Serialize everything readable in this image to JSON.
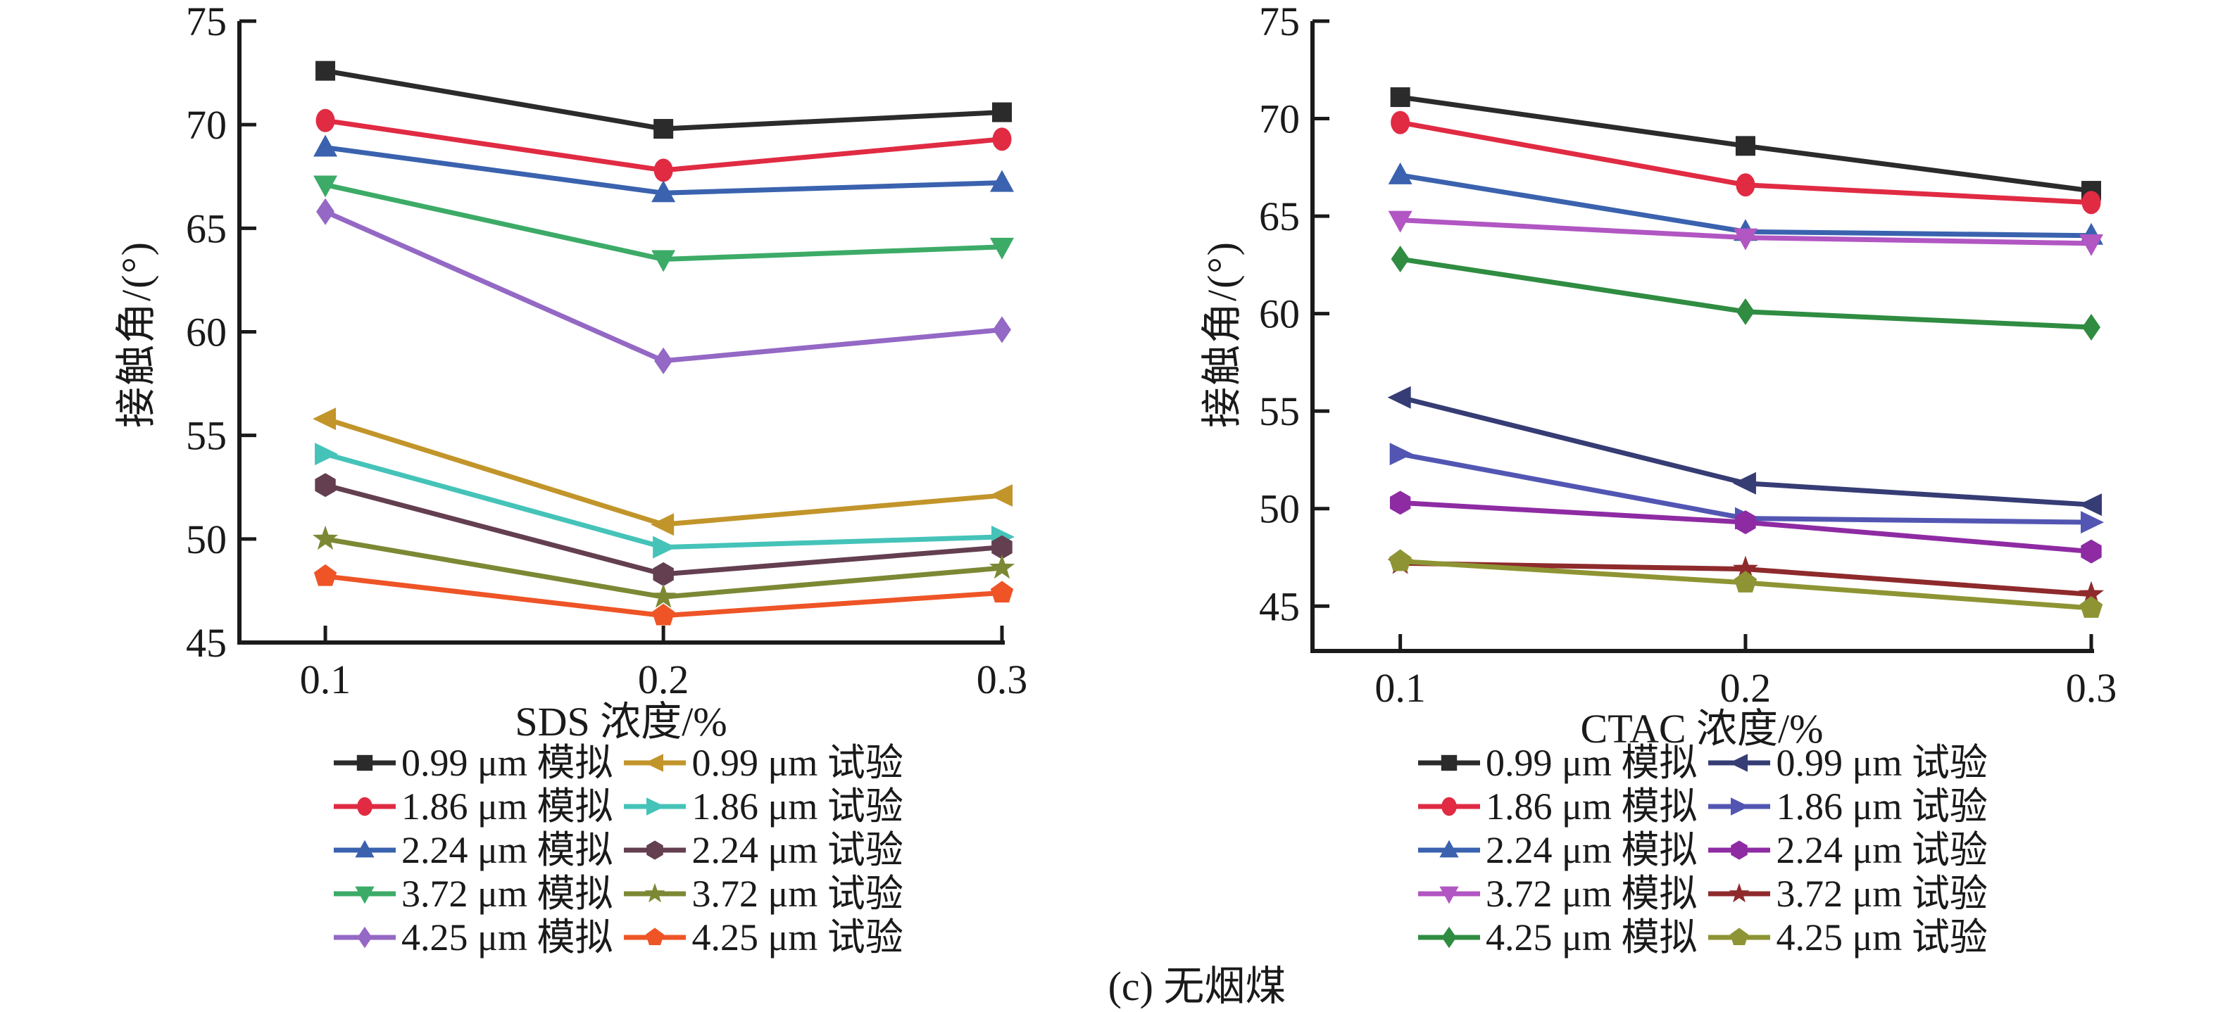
{
  "caption": "(c) 无烟煤",
  "chart_data": [
    {
      "type": "line",
      "xlabel": "SDS 浓度/%",
      "ylabel": "接触角/(°)",
      "x": [
        0.1,
        0.2,
        0.3
      ],
      "x_tick_labels": [
        "0.1",
        "0.2",
        "0.3"
      ],
      "y_ticks": [
        45,
        50,
        55,
        60,
        65,
        70,
        75
      ],
      "ylim": [
        45,
        75
      ],
      "grid": false,
      "legend_position": "below",
      "series": [
        {
          "name": "0.99 μm 模拟",
          "group": "模拟",
          "marker": "square",
          "color": "#2b2b2b",
          "values": [
            72.6,
            69.8,
            70.6
          ]
        },
        {
          "name": "1.86 μm 模拟",
          "group": "模拟",
          "marker": "circle",
          "color": "#e02b43",
          "values": [
            70.2,
            67.8,
            69.3
          ]
        },
        {
          "name": "2.24 μm 模拟",
          "group": "模拟",
          "marker": "triangle-up",
          "color": "#3a62ae",
          "values": [
            68.9,
            66.7,
            67.2
          ]
        },
        {
          "name": "3.72 μm 模拟",
          "group": "模拟",
          "marker": "triangle-down",
          "color": "#3cab67",
          "values": [
            67.1,
            63.5,
            64.1
          ]
        },
        {
          "name": "4.25 μm 模拟",
          "group": "模拟",
          "marker": "diamond",
          "color": "#9468c5",
          "values": [
            65.8,
            58.6,
            60.1
          ]
        },
        {
          "name": "0.99 μm 试验",
          "group": "试验",
          "marker": "triangle-left",
          "color": "#c2952b",
          "values": [
            55.8,
            50.7,
            52.1
          ]
        },
        {
          "name": "1.86 μm 试验",
          "group": "试验",
          "marker": "triangle-right",
          "color": "#45c3b9",
          "values": [
            54.1,
            49.6,
            50.1
          ]
        },
        {
          "name": "2.24 μm 试验",
          "group": "试验",
          "marker": "hexagon",
          "color": "#633f50",
          "values": [
            52.6,
            48.3,
            49.6
          ]
        },
        {
          "name": "3.72 μm 试验",
          "group": "试验",
          "marker": "star",
          "color": "#7c8834",
          "values": [
            50.0,
            47.2,
            48.6
          ]
        },
        {
          "name": "4.25 μm 试验",
          "group": "试验",
          "marker": "pentagon",
          "color": "#ee5426",
          "values": [
            48.2,
            46.3,
            47.4
          ]
        }
      ]
    },
    {
      "type": "line",
      "xlabel": "CTAC 浓度/%",
      "ylabel": "接触角/(°)",
      "x": [
        0.1,
        0.2,
        0.3
      ],
      "x_tick_labels": [
        "0.1",
        "0.2",
        "0.3"
      ],
      "y_ticks": [
        45,
        50,
        55,
        60,
        65,
        70,
        75
      ],
      "ylim": [
        42.7,
        75
      ],
      "grid": false,
      "legend_position": "below",
      "series": [
        {
          "name": "0.99 μm 模拟",
          "group": "模拟",
          "marker": "square",
          "color": "#2b2b2b",
          "values": [
            71.1,
            68.6,
            66.3
          ]
        },
        {
          "name": "1.86 μm 模拟",
          "group": "模拟",
          "marker": "circle",
          "color": "#e02b43",
          "values": [
            69.8,
            66.6,
            65.7
          ]
        },
        {
          "name": "2.24 μm 模拟",
          "group": "模拟",
          "marker": "triangle-up",
          "color": "#3a62ae",
          "values": [
            67.1,
            64.2,
            64.0
          ]
        },
        {
          "name": "3.72 μm 模拟",
          "group": "模拟",
          "marker": "triangle-down",
          "color": "#b156c2",
          "values": [
            64.8,
            63.9,
            63.6
          ]
        },
        {
          "name": "4.25 μm 模拟",
          "group": "模拟",
          "marker": "diamond",
          "color": "#2f8c41",
          "values": [
            62.8,
            60.1,
            59.3
          ]
        },
        {
          "name": "0.99 μm 试验",
          "group": "试验",
          "marker": "triangle-left",
          "color": "#363c74",
          "values": [
            55.7,
            51.3,
            50.2
          ]
        },
        {
          "name": "1.86 μm 试验",
          "group": "试验",
          "marker": "triangle-right",
          "color": "#5256b2",
          "values": [
            52.8,
            49.5,
            49.3
          ]
        },
        {
          "name": "2.24 μm 试验",
          "group": "试验",
          "marker": "hexagon",
          "color": "#8e2ba3",
          "values": [
            50.3,
            49.3,
            47.8
          ]
        },
        {
          "name": "3.72 μm 试验",
          "group": "试验",
          "marker": "star",
          "color": "#8e2a2c",
          "values": [
            47.2,
            46.9,
            45.6
          ]
        },
        {
          "name": "4.25 μm 试验",
          "group": "试验",
          "marker": "pentagon",
          "color": "#8e9433",
          "values": [
            47.3,
            46.2,
            44.9
          ]
        }
      ]
    }
  ]
}
